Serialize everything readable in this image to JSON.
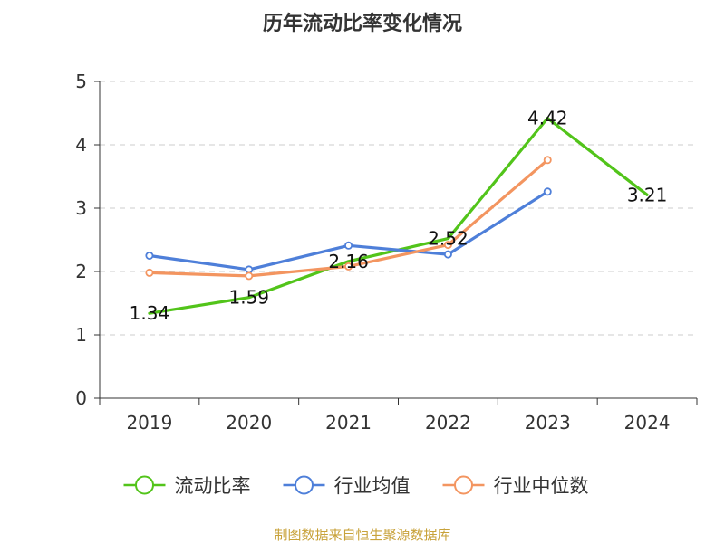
{
  "chart_data": {
    "type": "line",
    "title": "历年流动比率变化情况",
    "categories": [
      "2019",
      "2020",
      "2021",
      "2022",
      "2023",
      "2024"
    ],
    "ylim": [
      0,
      5
    ],
    "yticks": [
      "0",
      "1",
      "2",
      "3",
      "4",
      "5"
    ],
    "grid": true,
    "legend_position": "bottom",
    "series": [
      {
        "name": "流动比率",
        "color": "#52c41a",
        "values": [
          1.34,
          1.59,
          2.16,
          2.52,
          4.42,
          3.21
        ],
        "labels": [
          "1.34",
          "1.59",
          "2.16",
          "2.52",
          "4.42",
          "3.21"
        ],
        "show_markers": false
      },
      {
        "name": "行业均值",
        "color": "#4e7fd9",
        "values": [
          2.25,
          2.03,
          2.41,
          2.27,
          3.26,
          null
        ],
        "show_markers": true
      },
      {
        "name": "行业中位数",
        "color": "#f39560",
        "values": [
          1.98,
          1.93,
          2.08,
          2.42,
          3.76,
          null
        ],
        "show_markers": true
      }
    ]
  },
  "source": "制图数据来自恒生聚源数据库"
}
